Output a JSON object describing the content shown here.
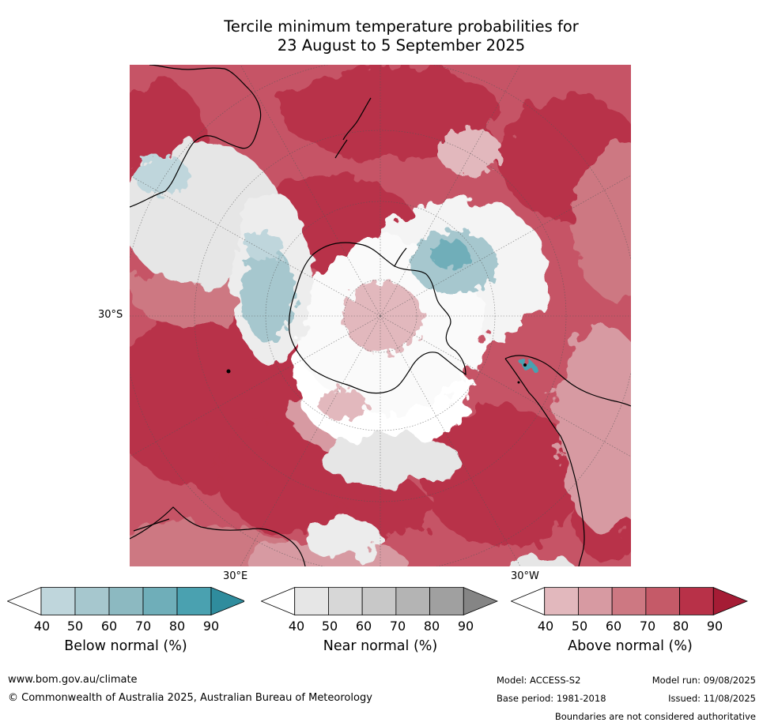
{
  "title": {
    "line1": "Tercile minimum temperature probabilities for",
    "line2": "23 August to 5 September 2025"
  },
  "map": {
    "projection": "south-polar-stereographic",
    "lat_label": "30°S",
    "lon_labels": [
      "30°E",
      "30°W"
    ]
  },
  "colorbars": [
    {
      "label": "Below normal (%)",
      "ticks": [
        "40",
        "50",
        "60",
        "70",
        "80",
        "90"
      ],
      "colors": [
        "#ffffff",
        "#bfd6dc",
        "#a6c7ce",
        "#8cb9c1",
        "#6faeb9",
        "#4aa1b0",
        "#2f8c9d"
      ]
    },
    {
      "label": "Near normal (%)",
      "ticks": [
        "40",
        "50",
        "60",
        "70",
        "80",
        "90"
      ],
      "colors": [
        "#ffffff",
        "#e6e6e6",
        "#d7d7d7",
        "#c8c8c8",
        "#b4b4b4",
        "#a0a0a0",
        "#858585"
      ]
    },
    {
      "label": "Above normal (%)",
      "ticks": [
        "40",
        "50",
        "60",
        "70",
        "80",
        "90"
      ],
      "colors": [
        "#ffffff",
        "#e2b8bd",
        "#d79aa2",
        "#cd7882",
        "#c55a68",
        "#b83148",
        "#a51c35"
      ]
    }
  ],
  "footer": {
    "website": "www.bom.gov.au/climate",
    "copyright": "© Commonwealth of Australia 2025, Australian Bureau of Meteorology",
    "model": "Model: ACCESS-S2",
    "base_period": "Base period: 1981-2018",
    "model_run": "Model run: 09/08/2025",
    "issued": "Issued: 11/08/2025",
    "boundaries": "Boundaries are not considered authoritative"
  }
}
